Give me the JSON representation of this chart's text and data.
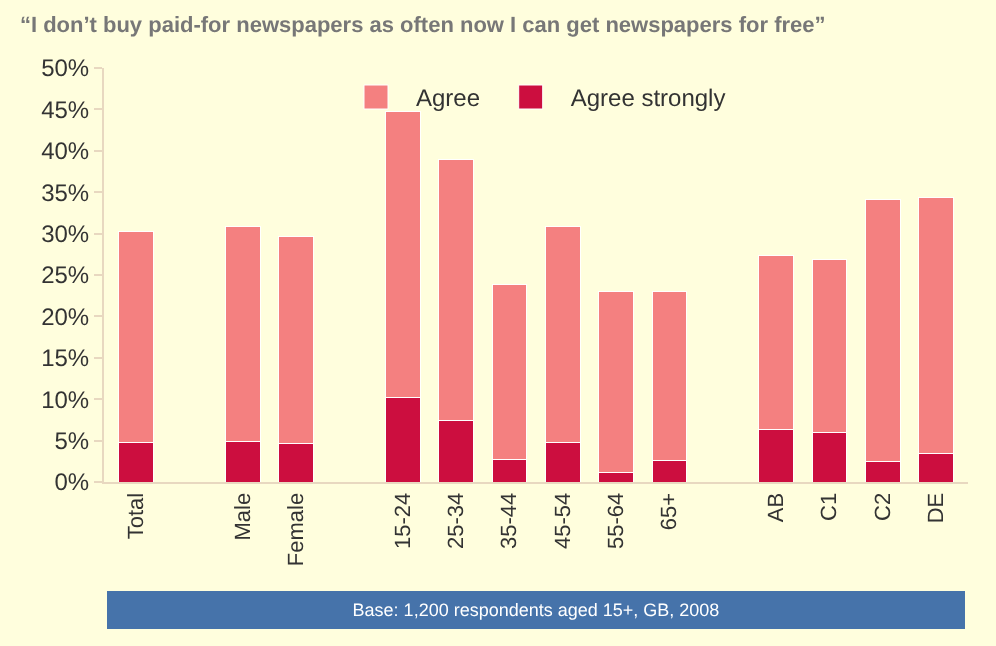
{
  "chart_data": {
    "type": "bar",
    "title": "“I don’t buy paid-for newspapers as often now I can get newspapers for free”",
    "categories": [
      "Total",
      null,
      "Male",
      "Female",
      null,
      "15-24",
      "25-34",
      "35-44",
      "45-54",
      "55-64",
      "65+",
      null,
      "AB",
      "C1",
      "C2",
      "DE"
    ],
    "stacked": true,
    "series": [
      {
        "name": "Agree strongly",
        "color": "#cc0e3f",
        "values": [
          4.8,
          null,
          4.9,
          4.7,
          null,
          10.2,
          7.4,
          2.7,
          4.8,
          1.2,
          2.6,
          null,
          6.3,
          6.0,
          2.5,
          3.4
        ]
      },
      {
        "name": "Agree",
        "color": "#f48080",
        "values": [
          25.4,
          null,
          26.0,
          24.9,
          null,
          34.6,
          31.6,
          21.1,
          26.1,
          21.8,
          20.4,
          null,
          21.0,
          20.9,
          31.6,
          31.0
        ]
      }
    ],
    "ylim": [
      0,
      50
    ],
    "yticks": [
      {
        "value": 0,
        "label": "0%"
      },
      {
        "value": 5,
        "label": "5%"
      },
      {
        "value": 10,
        "label": "10%"
      },
      {
        "value": 15,
        "label": "15%"
      },
      {
        "value": 20,
        "label": "20%"
      },
      {
        "value": 25,
        "label": "25%"
      },
      {
        "value": 30,
        "label": "30%"
      },
      {
        "value": 35,
        "label": "35%"
      },
      {
        "value": 40,
        "label": "40%"
      },
      {
        "value": 45,
        "label": "45%"
      },
      {
        "value": 50,
        "label": "50%"
      }
    ],
    "grid": false,
    "legend": "top",
    "annotations": [
      "Base: 1,200 respondents aged 15+, GB, 2008"
    ]
  }
}
